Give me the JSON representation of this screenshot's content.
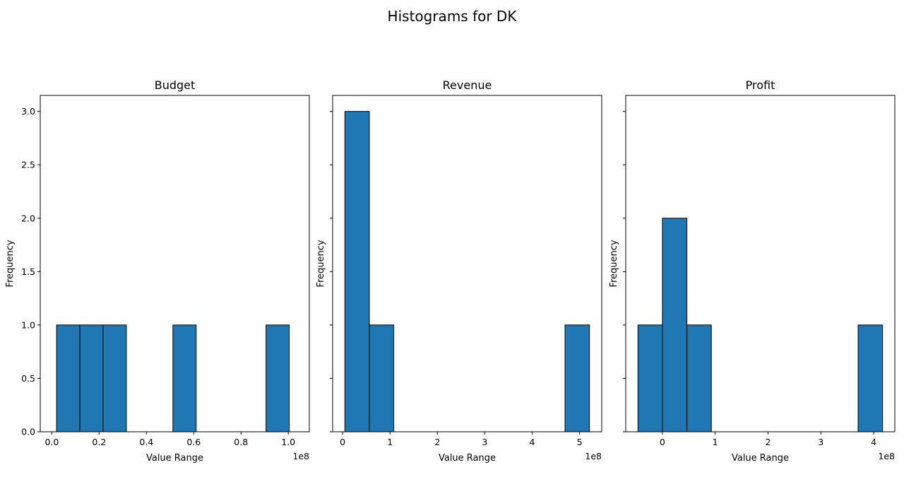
{
  "chart_data": {
    "suptitle": "Histograms for DK",
    "type": "bar",
    "bar_color": "#1f77b4",
    "edge_color": "#000000",
    "charts": [
      {
        "title": "Budget",
        "type": "histogram",
        "xlabel": "Value Range",
        "ylabel": "Frequency",
        "x_offset_text": "1e8",
        "xlim": [
          -0.04899,
          1.089
        ],
        "ylim": [
          0,
          3.15
        ],
        "xticks": [
          {
            "value": 0.0,
            "label": "0.0"
          },
          {
            "value": 0.2,
            "label": "0.2"
          },
          {
            "value": 0.4,
            "label": "0.4"
          },
          {
            "value": 0.6,
            "label": "0.6"
          },
          {
            "value": 0.8,
            "label": "0.8"
          },
          {
            "value": 1.0,
            "label": "1.0"
          }
        ],
        "yticks": [
          {
            "value": 0.0,
            "label": "0.0"
          },
          {
            "value": 0.5,
            "label": "0.5"
          },
          {
            "value": 1.0,
            "label": "1.0"
          },
          {
            "value": 1.5,
            "label": "1.5"
          },
          {
            "value": 2.0,
            "label": "2.0"
          },
          {
            "value": 2.5,
            "label": "2.5"
          },
          {
            "value": 3.0,
            "label": "3.0"
          }
        ],
        "show_ytick_labels": true,
        "bins": [
          {
            "start": 0.02,
            "end": 0.1184,
            "count": 1
          },
          {
            "start": 0.1184,
            "end": 0.2168,
            "count": 1
          },
          {
            "start": 0.2168,
            "end": 0.3152,
            "count": 1
          },
          {
            "start": 0.5121,
            "end": 0.6105,
            "count": 1
          },
          {
            "start": 0.9058,
            "end": 1.0042,
            "count": 1
          }
        ]
      },
      {
        "title": "Revenue",
        "type": "histogram",
        "xlabel": "Value Range",
        "ylabel": "Frequency",
        "x_offset_text": "1e8",
        "xlim": [
          -0.2111,
          5.4688
        ],
        "ylim": [
          0,
          3.15
        ],
        "xticks": [
          {
            "value": 0,
            "label": "0"
          },
          {
            "value": 1,
            "label": "1"
          },
          {
            "value": 2,
            "label": "2"
          },
          {
            "value": 3,
            "label": "3"
          },
          {
            "value": 4,
            "label": "4"
          },
          {
            "value": 5,
            "label": "5"
          }
        ],
        "yticks": [
          {
            "value": 0.0,
            "label": "0.0"
          },
          {
            "value": 0.5,
            "label": "0.5"
          },
          {
            "value": 1.0,
            "label": "1.0"
          },
          {
            "value": 1.5,
            "label": "1.5"
          },
          {
            "value": 2.0,
            "label": "2.0"
          },
          {
            "value": 2.5,
            "label": "2.5"
          },
          {
            "value": 3.0,
            "label": "3.0"
          }
        ],
        "show_ytick_labels": false,
        "bins": [
          {
            "start": 0.047,
            "end": 0.5634,
            "count": 3
          },
          {
            "start": 0.5634,
            "end": 1.0797,
            "count": 1
          },
          {
            "start": 4.6941,
            "end": 5.2104,
            "count": 1
          }
        ]
      },
      {
        "title": "Profit",
        "type": "histogram",
        "xlabel": "Value Range",
        "ylabel": "Frequency",
        "x_offset_text": "1e8",
        "xlim": [
          -0.6928,
          4.4
        ],
        "ylim": [
          0,
          3.15
        ],
        "xticks": [
          {
            "value": 0,
            "label": "0"
          },
          {
            "value": 1,
            "label": "1"
          },
          {
            "value": 2,
            "label": "2"
          },
          {
            "value": 3,
            "label": "3"
          },
          {
            "value": 4,
            "label": "4"
          }
        ],
        "yticks": [
          {
            "value": 0.0,
            "label": "0.0"
          },
          {
            "value": 0.5,
            "label": "0.5"
          },
          {
            "value": 1.0,
            "label": "1.0"
          },
          {
            "value": 1.5,
            "label": "1.5"
          },
          {
            "value": 2.0,
            "label": "2.0"
          },
          {
            "value": 2.5,
            "label": "2.5"
          },
          {
            "value": 3.0,
            "label": "3.0"
          }
        ],
        "show_ytick_labels": false,
        "bins": [
          {
            "start": -0.4613,
            "end": 0.0017,
            "count": 1
          },
          {
            "start": 0.0017,
            "end": 0.4647,
            "count": 2
          },
          {
            "start": 0.4647,
            "end": 0.9277,
            "count": 1
          },
          {
            "start": 3.7057,
            "end": 4.1687,
            "count": 1
          }
        ]
      }
    ]
  }
}
